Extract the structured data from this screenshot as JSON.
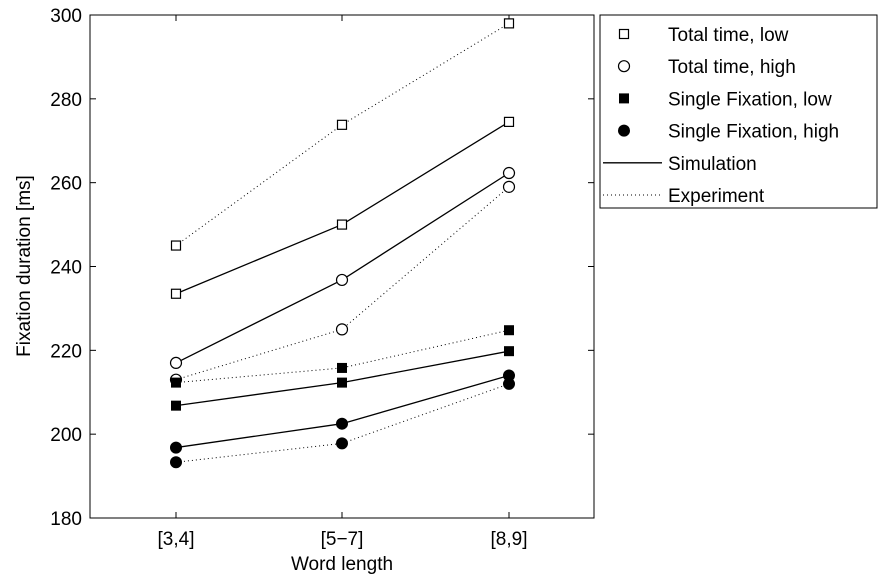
{
  "chart_data": {
    "type": "line",
    "xlabel": "Word length",
    "ylabel": "Fixation duration [ms]",
    "categories": [
      "[3,4]",
      "[5−7]",
      "[8,9]"
    ],
    "ylim": [
      180,
      300
    ],
    "yticks": [
      "180",
      "200",
      "220",
      "240",
      "260",
      "280",
      "300"
    ],
    "grid": false,
    "legend_position": "outside-top-right",
    "series": [
      {
        "name": "Total time, low",
        "group": "Experiment",
        "line": "dotted",
        "marker": "square-open",
        "values": [
          245,
          273.8,
          298
        ]
      },
      {
        "name": "Total time, low",
        "group": "Simulation",
        "line": "solid",
        "marker": "square-open",
        "values": [
          233.5,
          250,
          274.5
        ]
      },
      {
        "name": "Total time, high",
        "group": "Simulation",
        "line": "solid",
        "marker": "circle-open",
        "values": [
          217,
          236.8,
          262.3
        ]
      },
      {
        "name": "Total time, high",
        "group": "Experiment",
        "line": "dotted",
        "marker": "circle-open",
        "values": [
          213,
          225,
          259
        ]
      },
      {
        "name": "Single Fixation, low",
        "group": "Experiment",
        "line": "dotted",
        "marker": "square-filled",
        "values": [
          212.3,
          215.8,
          224.8
        ]
      },
      {
        "name": "Single Fixation, low",
        "group": "Simulation",
        "line": "solid",
        "marker": "square-filled",
        "values": [
          206.8,
          212.3,
          219.8
        ]
      },
      {
        "name": "Single Fixation, high",
        "group": "Simulation",
        "line": "solid",
        "marker": "circle-filled",
        "values": [
          196.8,
          202.5,
          214
        ]
      },
      {
        "name": "Single Fixation, high",
        "group": "Experiment",
        "line": "dotted",
        "marker": "circle-filled",
        "values": [
          193.3,
          197.8,
          212
        ]
      }
    ],
    "legend": [
      {
        "label": "Total time, low",
        "symbol": "square-open"
      },
      {
        "label": "Total time, high",
        "symbol": "circle-open"
      },
      {
        "label": "Single Fixation, low",
        "symbol": "square-filled"
      },
      {
        "label": "Single Fixation, high",
        "symbol": "circle-filled"
      },
      {
        "label": "Simulation",
        "symbol": "solid-line"
      },
      {
        "label": "Experiment",
        "symbol": "dotted-line"
      }
    ]
  }
}
